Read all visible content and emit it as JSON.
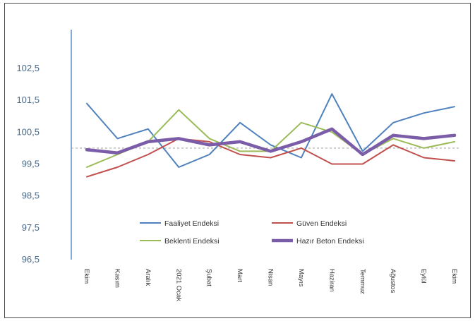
{
  "chart_data": {
    "type": "line",
    "title": "",
    "xlabel": "",
    "ylabel": "",
    "ylim": [
      96.5,
      102.5
    ],
    "yticks": [
      "102,5",
      "101,5",
      "100,5",
      "99,5",
      "98,5",
      "97,5",
      "96,5"
    ],
    "ytick_values": [
      102.5,
      101.5,
      100.5,
      99.5,
      98.5,
      97.5,
      96.5
    ],
    "categories": [
      "Ekim",
      "Kasım",
      "Aralık",
      "2021 Ocak",
      "Şubat",
      "Mart",
      "Nisan",
      "Mayıs",
      "Haziran",
      "Temmuz",
      "Ağustos",
      "Eylül",
      "Ekim"
    ],
    "reference_line": 100,
    "grid": false,
    "legend_position": "bottom-center",
    "series": [
      {
        "name": "Faaliyet Endeksi",
        "color": "#4f81bd",
        "width": 2,
        "values": [
          101.4,
          100.3,
          100.6,
          99.4,
          99.8,
          100.8,
          100.1,
          99.7,
          101.7,
          99.9,
          100.8,
          101.1,
          101.3
        ]
      },
      {
        "name": "Güven Endeksi",
        "color": "#c0504d",
        "width": 2,
        "values": [
          99.1,
          99.4,
          99.8,
          100.3,
          100.2,
          99.8,
          99.7,
          100.0,
          99.5,
          99.5,
          100.1,
          99.7,
          99.6
        ]
      },
      {
        "name": "Beklenti Endeksi",
        "color": "#9bbb59",
        "width": 2,
        "values": [
          99.4,
          99.8,
          100.2,
          101.2,
          100.3,
          99.9,
          99.9,
          100.8,
          100.5,
          99.8,
          100.3,
          100.0,
          100.2
        ]
      },
      {
        "name": "Hazır Beton Endeksi",
        "color": "#7b5ca8",
        "width": 4.5,
        "values": [
          99.95,
          99.85,
          100.2,
          100.3,
          100.1,
          100.2,
          99.9,
          100.2,
          100.6,
          99.8,
          100.4,
          100.3,
          100.4
        ]
      }
    ]
  }
}
